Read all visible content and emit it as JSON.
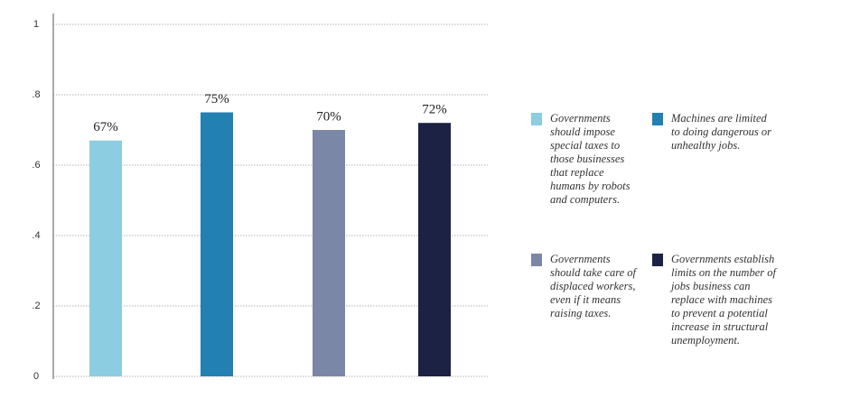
{
  "chart_data": {
    "type": "bar",
    "categories": [
      "Governments should impose special taxes to those businesses that replace humans by robots and computers.",
      "Machines are limited to doing dangerous or unhealthy jobs.",
      "Governments should take care of displaced workers, even if it means raising taxes.",
      "Governments establish limits on the number of jobs business can replace with machines to prevent a potential increase in structural unemployment."
    ],
    "values": [
      0.67,
      0.75,
      0.7,
      0.72
    ],
    "value_labels": [
      "67%",
      "75%",
      "70%",
      "72%"
    ],
    "colors": [
      "#8ccde2",
      "#2280b2",
      "#7a87a6",
      "#1c2244"
    ],
    "ylim": [
      0,
      1
    ],
    "yticks": [
      0,
      {
        "value": 0.2,
        "label": ".2"
      },
      {
        "value": 0.4,
        "label": ".4"
      },
      {
        "value": 0.6,
        "label": ".6"
      },
      {
        "value": 0.8,
        "label": ".8"
      },
      1
    ],
    "grid": true
  }
}
